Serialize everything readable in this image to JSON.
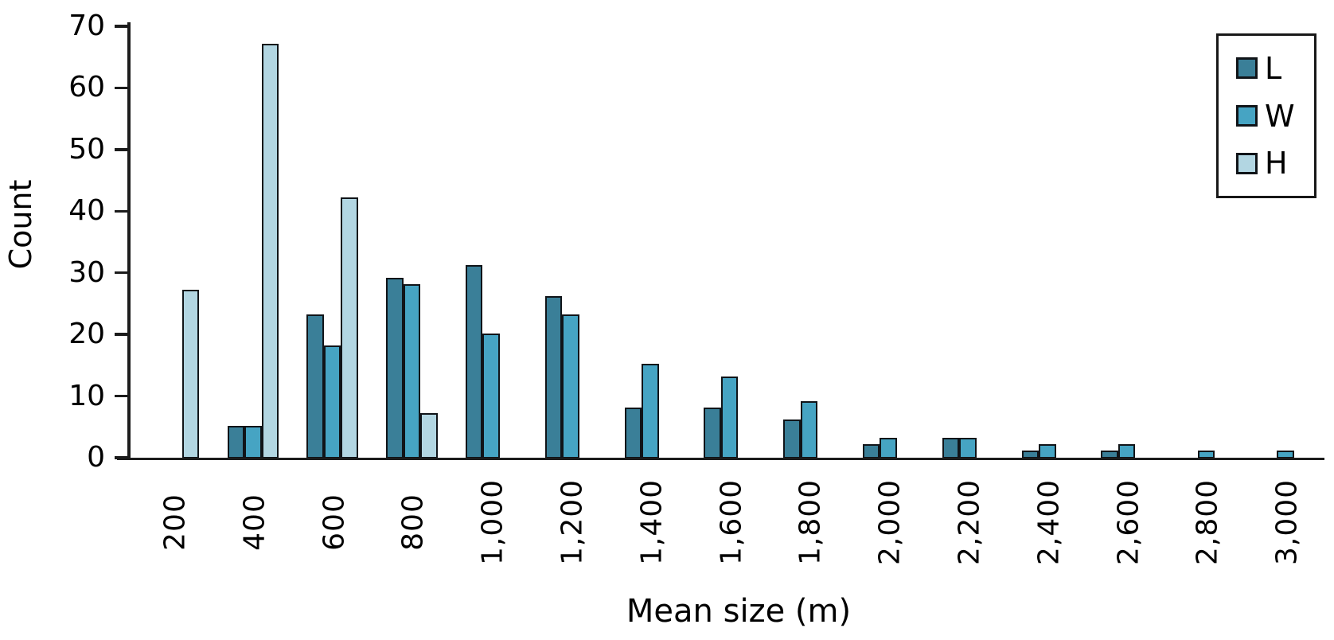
{
  "chart_data": {
    "type": "bar",
    "title": "",
    "xlabel": "Mean size (m)",
    "ylabel": "Count",
    "categories": [
      "200",
      "400",
      "600",
      "800",
      "1,000",
      "1,200",
      "1,400",
      "1,600",
      "1,800",
      "2,000",
      "2,200",
      "2,400",
      "2,600",
      "2,800",
      "3,000"
    ],
    "series": [
      {
        "name": "L",
        "color": "#3a7f98",
        "values": [
          null,
          5,
          23,
          29,
          31,
          26,
          8,
          8,
          6,
          2,
          3,
          1,
          1,
          null,
          null
        ]
      },
      {
        "name": "W",
        "color": "#46a4c3",
        "values": [
          null,
          5,
          18,
          28,
          20,
          23,
          15,
          13,
          9,
          3,
          3,
          2,
          2,
          1,
          1
        ]
      },
      {
        "name": "H",
        "color": "#b2d6e2",
        "values": [
          27,
          67,
          42,
          7,
          null,
          null,
          null,
          null,
          null,
          null,
          null,
          null,
          null,
          null,
          null
        ]
      }
    ],
    "ylim": [
      0,
      70
    ],
    "yticks": [
      0,
      10,
      20,
      30,
      40,
      50,
      60,
      70
    ],
    "grid": false,
    "legend_position": "upper right",
    "legend_entries": [
      "L",
      "W",
      "H"
    ],
    "bar_edge_color": "#101418",
    "axis_color": "#1c1c1c"
  }
}
